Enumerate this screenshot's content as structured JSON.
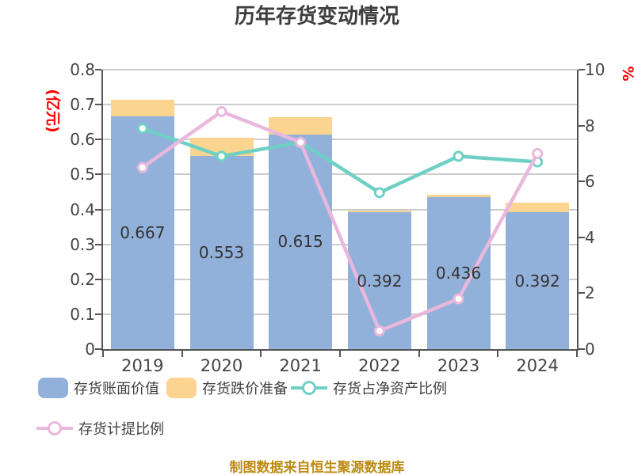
{
  "title": "历年存货变动情况",
  "footer": "制图数据来自恒生聚源数据库",
  "left_axis": {
    "unit": "(亿元)",
    "ticks": [
      "0.8",
      "0.7",
      "0.6",
      "0.5",
      "0.4",
      "0.3",
      "0.2",
      "0.1",
      "0"
    ],
    "max": 0.8
  },
  "right_axis": {
    "unit": "%",
    "ticks": [
      "10",
      "8",
      "6",
      "4",
      "2",
      "0"
    ],
    "max": 10
  },
  "colors": {
    "bar_blue": "#92b1da",
    "bar_orange": "#fbd58f",
    "line_teal": "#6ed0c5",
    "line_pink": "#e9b8dc",
    "grid": "#cccccc",
    "axis": "#555555",
    "unit_red": "#ff0000",
    "footer_gold": "#bd8a10",
    "title_gray": "#3d3d3d"
  },
  "legend": {
    "items": [
      {
        "label": "存货账面价值",
        "type": "box",
        "color": "#92b1da"
      },
      {
        "label": "存货跌价准备",
        "type": "box",
        "color": "#fbd58f"
      },
      {
        "label": "存货占净资产比例",
        "type": "line",
        "color": "#6ed0c5"
      },
      {
        "label": "存货计提比例",
        "type": "line",
        "color": "#e9b8dc"
      }
    ]
  },
  "chart_data": {
    "type": "bar",
    "subtype": "stacked-bars-with-lines",
    "title": "历年存货变动情况",
    "categories": [
      "2019",
      "2020",
      "2021",
      "2022",
      "2023",
      "2024"
    ],
    "left_ylim": [
      0,
      0.8
    ],
    "right_ylim": [
      0,
      10
    ],
    "grid": true,
    "legend_position": "bottom",
    "series": [
      {
        "name": "存货账面价值",
        "type": "bar",
        "axis": "left",
        "values": [
          0.667,
          0.553,
          0.615,
          0.392,
          0.436,
          0.392
        ],
        "labels": [
          "0.667",
          "0.553",
          "0.615",
          "0.392",
          "0.436",
          "0.392"
        ]
      },
      {
        "name": "存货跌价准备",
        "type": "bar-stacked-top",
        "axis": "left",
        "values": [
          0.048,
          0.052,
          0.048,
          0.004,
          0.005,
          0.027
        ]
      },
      {
        "name": "存货占净资产比例",
        "type": "line",
        "axis": "right",
        "values": [
          7.9,
          6.9,
          7.4,
          5.6,
          6.9,
          6.7
        ]
      },
      {
        "name": "存货计提比例",
        "type": "line",
        "axis": "right",
        "values": [
          6.5,
          8.5,
          7.4,
          0.65,
          1.8,
          7.0
        ]
      }
    ]
  }
}
